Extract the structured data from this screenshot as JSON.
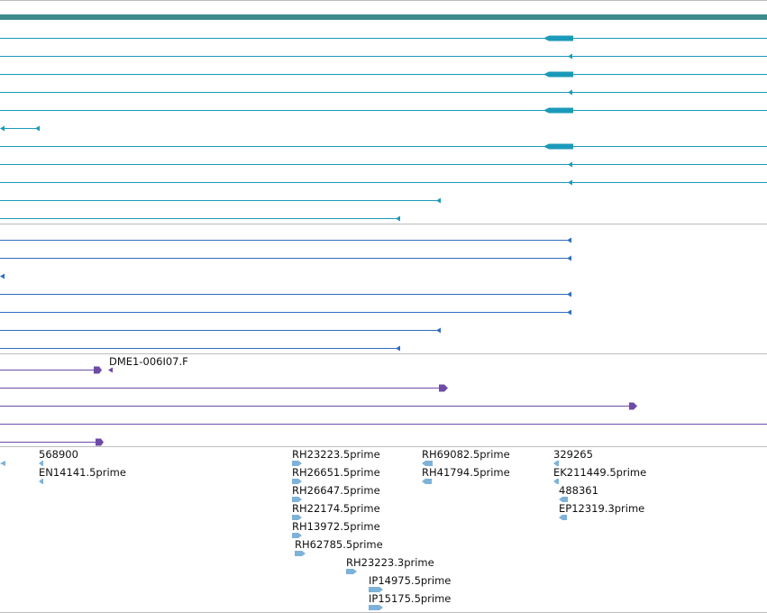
{
  "colors": {
    "header_bar": "#3d8b8c",
    "transcript": "#1a9ab8",
    "mrna": "#2f6dbf",
    "clone": "#6e4ba8",
    "est": "#7fb2d8",
    "divider": "#bdbdbd"
  },
  "tracks": {
    "clone_track": {
      "label": "DME1-006I07.F"
    },
    "est_track": {
      "labels": {
        "l568900": "568900",
        "lEN14141": "EN14141.5prime",
        "lRH23223_5": "RH23223.5prime",
        "lRH26651": "RH26651.5prime",
        "lRH26647": "RH26647.5prime",
        "lRH22174": "RH22174.5prime",
        "lRH13972": "RH13972.5prime",
        "lRH62785": "RH62785.5prime",
        "lRH23223_3": "RH23223.3prime",
        "lIP14975": "IP14975.5prime",
        "lIP15175": "IP15175.5prime",
        "lRH69082": "RH69082.5prime",
        "lRH41794": "RH41794.5prime",
        "l329265": "329265",
        "lEK211449": "EK211449.5prime",
        "l488361": "488361",
        "lEP12319": "EP12319.3prime"
      }
    }
  }
}
